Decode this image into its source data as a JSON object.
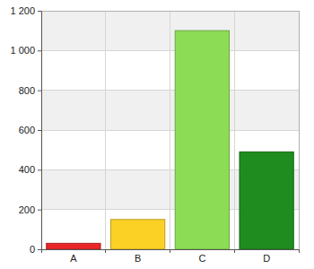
{
  "chart_data": {
    "type": "bar",
    "categories": [
      "A",
      "B",
      "C",
      "D"
    ],
    "values": [
      30,
      150,
      1100,
      490
    ],
    "colors": [
      "#e8262a",
      "#fbd126",
      "#8cdd55",
      "#1f8c1f"
    ],
    "ylim": [
      0,
      1200
    ],
    "yticks": [
      0,
      200,
      400,
      600,
      800,
      {
        "value": 1000,
        "label": "1 000"
      },
      {
        "value": 1200,
        "label": "1 200"
      }
    ],
    "grid": true
  }
}
